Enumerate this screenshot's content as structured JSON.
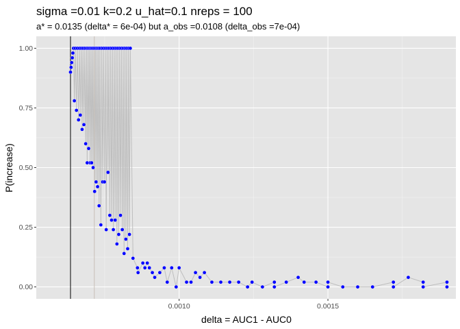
{
  "chart_data": {
    "type": "scatter",
    "title": "sigma =0.01  k=0.2  u_hat=0.1  nreps = 100",
    "subtitle": "a* = 0.0135 (delta* = 6e-04) but a_obs =0.0108 (delta_obs =7e-04)",
    "xlabel": "delta = AUC1 - AUC0",
    "ylabel": "P(increase)",
    "xlim": [
      0.00052,
      0.00193
    ],
    "ylim": [
      -0.05,
      1.05
    ],
    "x_ticks": [
      0.001,
      0.0015
    ],
    "x_tick_labels": [
      "0.0010",
      "0.0015"
    ],
    "y_ticks": [
      0,
      0.25,
      0.5,
      0.75,
      1.0
    ],
    "y_tick_labels": [
      "0.00",
      "0.25",
      "0.50",
      "0.75",
      "1.00"
    ],
    "grid": true,
    "legend": "none",
    "vlines": [
      {
        "x": 0.000635,
        "color": "#000000"
      },
      {
        "x": 0.000715,
        "color": "#c8c0b8"
      }
    ],
    "point_color": "#0000ff",
    "line_color": "#bebebe",
    "panel_bg": "#e5e5e5",
    "points": [
      {
        "x": 0.000635,
        "y": 0.9
      },
      {
        "x": 0.000637,
        "y": 0.92
      },
      {
        "x": 0.000639,
        "y": 0.94
      },
      {
        "x": 0.000641,
        "y": 0.96
      },
      {
        "x": 0.000643,
        "y": 0.98
      },
      {
        "x": 0.000645,
        "y": 1.0
      },
      {
        "x": 0.000648,
        "y": 0.78
      },
      {
        "x": 0.000651,
        "y": 1.0
      },
      {
        "x": 0.000655,
        "y": 0.74
      },
      {
        "x": 0.000658,
        "y": 1.0
      },
      {
        "x": 0.000662,
        "y": 0.7
      },
      {
        "x": 0.000665,
        "y": 1.0
      },
      {
        "x": 0.000668,
        "y": 0.72
      },
      {
        "x": 0.000671,
        "y": 1.0
      },
      {
        "x": 0.000674,
        "y": 0.66
      },
      {
        "x": 0.000677,
        "y": 1.0
      },
      {
        "x": 0.00068,
        "y": 0.68
      },
      {
        "x": 0.000683,
        "y": 1.0
      },
      {
        "x": 0.000686,
        "y": 0.6
      },
      {
        "x": 0.000689,
        "y": 1.0
      },
      {
        "x": 0.000691,
        "y": 0.52
      },
      {
        "x": 0.000694,
        "y": 1.0
      },
      {
        "x": 0.000696,
        "y": 0.58
      },
      {
        "x": 0.000699,
        "y": 1.0
      },
      {
        "x": 0.000701,
        "y": 0.52
      },
      {
        "x": 0.000704,
        "y": 1.0
      },
      {
        "x": 0.000706,
        "y": 0.52
      },
      {
        "x": 0.000709,
        "y": 1.0
      },
      {
        "x": 0.000711,
        "y": 0.5
      },
      {
        "x": 0.000714,
        "y": 1.0
      },
      {
        "x": 0.000716,
        "y": 0.4
      },
      {
        "x": 0.000719,
        "y": 1.0
      },
      {
        "x": 0.000721,
        "y": 0.44
      },
      {
        "x": 0.000724,
        "y": 1.0
      },
      {
        "x": 0.000726,
        "y": 0.42
      },
      {
        "x": 0.000729,
        "y": 1.0
      },
      {
        "x": 0.000731,
        "y": 0.34
      },
      {
        "x": 0.000734,
        "y": 1.0
      },
      {
        "x": 0.000737,
        "y": 0.26
      },
      {
        "x": 0.00074,
        "y": 1.0
      },
      {
        "x": 0.000743,
        "y": 0.44
      },
      {
        "x": 0.000746,
        "y": 1.0
      },
      {
        "x": 0.000749,
        "y": 0.44
      },
      {
        "x": 0.000752,
        "y": 1.0
      },
      {
        "x": 0.000755,
        "y": 0.24
      },
      {
        "x": 0.000758,
        "y": 1.0
      },
      {
        "x": 0.000761,
        "y": 0.48
      },
      {
        "x": 0.000764,
        "y": 1.0
      },
      {
        "x": 0.000767,
        "y": 0.3
      },
      {
        "x": 0.00077,
        "y": 1.0
      },
      {
        "x": 0.000773,
        "y": 0.28
      },
      {
        "x": 0.000776,
        "y": 1.0
      },
      {
        "x": 0.000779,
        "y": 0.24
      },
      {
        "x": 0.000782,
        "y": 1.0
      },
      {
        "x": 0.000785,
        "y": 0.28
      },
      {
        "x": 0.000788,
        "y": 1.0
      },
      {
        "x": 0.000791,
        "y": 0.18
      },
      {
        "x": 0.000794,
        "y": 1.0
      },
      {
        "x": 0.000797,
        "y": 0.22
      },
      {
        "x": 0.0008,
        "y": 1.0
      },
      {
        "x": 0.000803,
        "y": 0.3
      },
      {
        "x": 0.000806,
        "y": 1.0
      },
      {
        "x": 0.000809,
        "y": 0.24
      },
      {
        "x": 0.000812,
        "y": 1.0
      },
      {
        "x": 0.000815,
        "y": 0.14
      },
      {
        "x": 0.000818,
        "y": 1.0
      },
      {
        "x": 0.000821,
        "y": 0.2
      },
      {
        "x": 0.000824,
        "y": 1.0
      },
      {
        "x": 0.000827,
        "y": 0.16
      },
      {
        "x": 0.00083,
        "y": 1.0
      },
      {
        "x": 0.000833,
        "y": 0.22
      },
      {
        "x": 0.000836,
        "y": 1.0
      },
      {
        "x": 0.000845,
        "y": 0.12
      },
      {
        "x": 0.00086,
        "y": 0.08
      },
      {
        "x": 0.000862,
        "y": 0.06
      },
      {
        "x": 0.000878,
        "y": 0.1
      },
      {
        "x": 0.000885,
        "y": 0.08
      },
      {
        "x": 0.000893,
        "y": 0.1
      },
      {
        "x": 0.0009,
        "y": 0.08
      },
      {
        "x": 0.00091,
        "y": 0.06
      },
      {
        "x": 0.000918,
        "y": 0.04
      },
      {
        "x": 0.000935,
        "y": 0.06
      },
      {
        "x": 0.00095,
        "y": 0.08
      },
      {
        "x": 0.00096,
        "y": 0.02
      },
      {
        "x": 0.000975,
        "y": 0.08
      },
      {
        "x": 0.00099,
        "y": 0.0
      },
      {
        "x": 0.001,
        "y": 0.08
      },
      {
        "x": 0.001025,
        "y": 0.02
      },
      {
        "x": 0.00104,
        "y": 0.02
      },
      {
        "x": 0.001055,
        "y": 0.06
      },
      {
        "x": 0.00107,
        "y": 0.04
      },
      {
        "x": 0.001085,
        "y": 0.06
      },
      {
        "x": 0.00111,
        "y": 0.02
      },
      {
        "x": 0.00114,
        "y": 0.02
      },
      {
        "x": 0.00117,
        "y": 0.02
      },
      {
        "x": 0.0012,
        "y": 0.02
      },
      {
        "x": 0.00123,
        "y": 0.0
      },
      {
        "x": 0.001245,
        "y": 0.02
      },
      {
        "x": 0.00128,
        "y": 0.0
      },
      {
        "x": 0.00132,
        "y": 0.02
      },
      {
        "x": 0.00132,
        "y": 0.0
      },
      {
        "x": 0.00136,
        "y": 0.02
      },
      {
        "x": 0.0014,
        "y": 0.04
      },
      {
        "x": 0.00142,
        "y": 0.02
      },
      {
        "x": 0.00146,
        "y": 0.02
      },
      {
        "x": 0.0015,
        "y": 0.0
      },
      {
        "x": 0.0015,
        "y": 0.02
      },
      {
        "x": 0.00155,
        "y": 0.0
      },
      {
        "x": 0.0016,
        "y": 0.0
      },
      {
        "x": 0.00165,
        "y": 0.0
      },
      {
        "x": 0.00172,
        "y": 0.02
      },
      {
        "x": 0.00172,
        "y": 0.0
      },
      {
        "x": 0.00177,
        "y": 0.04
      },
      {
        "x": 0.00182,
        "y": 0.02
      },
      {
        "x": 0.00182,
        "y": 0.0
      },
      {
        "x": 0.0019,
        "y": 0.02
      },
      {
        "x": 0.0019,
        "y": 0.0
      }
    ]
  }
}
